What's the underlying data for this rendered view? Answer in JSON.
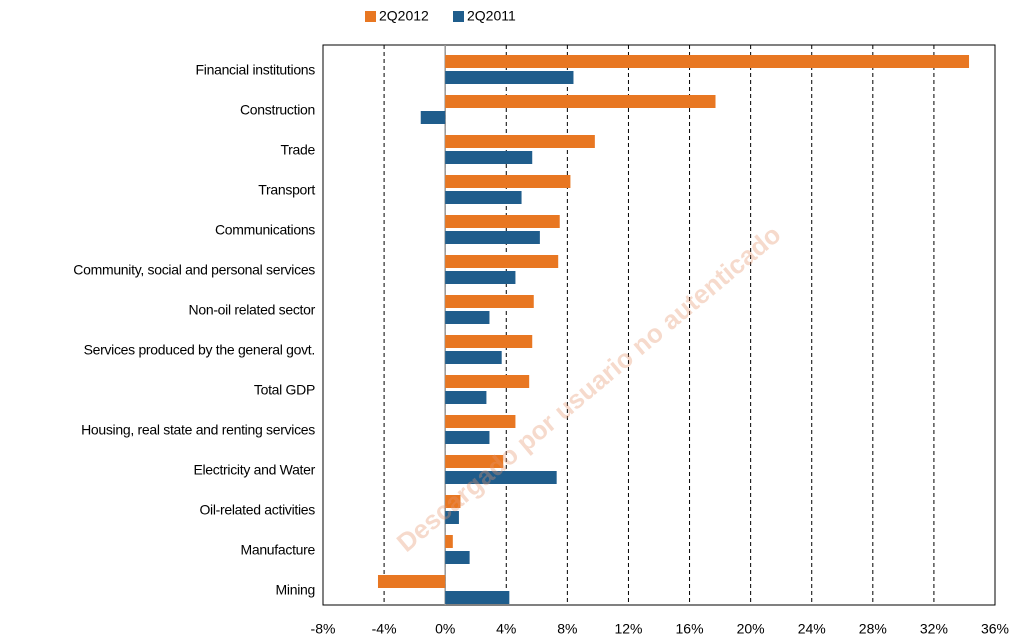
{
  "chart_data": {
    "type": "hbar",
    "categories": [
      "Financial institutions",
      "Construction",
      "Trade",
      "Transport",
      "Communications",
      "Community, social and personal services",
      "Non-oil related sector",
      "Services produced by the general govt.",
      "Total GDP",
      "Housing, real state and renting services",
      "Electricity and Water",
      "Oil-related activities",
      "Manufacture",
      "Mining"
    ],
    "series": [
      {
        "name": "2Q2012",
        "color": "#e87722",
        "values": [
          34.3,
          17.7,
          9.8,
          8.2,
          7.5,
          7.4,
          5.8,
          5.7,
          5.5,
          4.6,
          3.8,
          1.0,
          0.5,
          -4.4
        ]
      },
      {
        "name": "2Q2011",
        "color": "#1f5d8c",
        "values": [
          8.4,
          -1.6,
          5.7,
          5.0,
          6.2,
          4.6,
          2.9,
          3.7,
          2.7,
          2.9,
          7.3,
          0.9,
          1.6,
          4.2
        ]
      }
    ],
    "xlim": [
      -8,
      36
    ],
    "xticks": [
      {
        "value": -8,
        "label": "-8%"
      },
      {
        "value": -4,
        "label": "-4%"
      },
      {
        "value": 0,
        "label": "0%"
      },
      {
        "value": 4,
        "label": "4%"
      },
      {
        "value": 8,
        "label": "8%"
      },
      {
        "value": 12,
        "label": "12%"
      },
      {
        "value": 16,
        "label": "16%"
      },
      {
        "value": 20,
        "label": "20%"
      },
      {
        "value": 24,
        "label": "24%"
      },
      {
        "value": 28,
        "label": "28%"
      },
      {
        "value": 32,
        "label": "32%"
      },
      {
        "value": 36,
        "label": "36%"
      }
    ],
    "grid": true,
    "legend": "top",
    "watermark": "Descargado por usuario no autenticado"
  }
}
